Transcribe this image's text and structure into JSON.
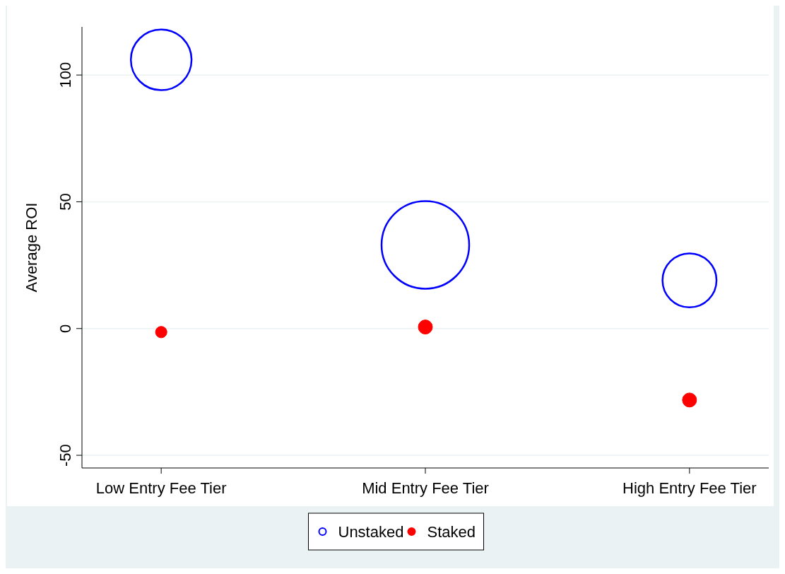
{
  "chart_data": {
    "type": "bubble",
    "ylabel": "Average ROI",
    "categories": [
      "Low Entry Fee Tier",
      "Mid Entry Fee Tier",
      "High Entry Fee Tier"
    ],
    "series": [
      {
        "name": "Unstaked",
        "color": "#0000ff",
        "values": [
          106,
          33,
          19
        ],
        "sizes": [
          0.48,
          1,
          0.38
        ]
      },
      {
        "name": "Staked",
        "color": "#ff0000",
        "values": [
          -1.4,
          0.6,
          -28.2
        ],
        "sizes": [
          0.017,
          0.026,
          0.026
        ]
      }
    ],
    "ylim": [
      -55,
      119
    ],
    "yticks": [
      -50,
      0,
      50,
      100
    ],
    "grid": "y",
    "legend": "bottom"
  }
}
